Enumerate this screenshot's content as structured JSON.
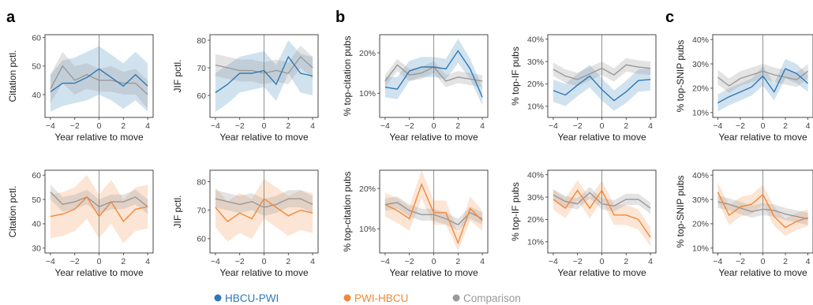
{
  "panel_labels": [
    "a",
    "b",
    "c"
  ],
  "colors": {
    "HBCU-PWI": "#2e79b5",
    "PWI-HBCU": "#f0883a",
    "Comparison": "#999999"
  },
  "legend": [
    {
      "label": "HBCU-PWI",
      "color": "#2e79b5"
    },
    {
      "label": "PWI-HBCU",
      "color": "#f0883a"
    },
    {
      "label": "Comparison",
      "color": "#999999"
    }
  ],
  "chart_data": [
    {
      "type": "line",
      "panel": "a",
      "row": "top",
      "ylabel": "Citation pctl.",
      "xlabel": "Year relative to move",
      "x": [
        -4,
        -3,
        -2,
        -1,
        0,
        1,
        2,
        3,
        4
      ],
      "xticks": [
        -4,
        -2,
        0,
        2,
        4
      ],
      "ylim": [
        32,
        61
      ],
      "yticks": [
        40,
        50,
        60
      ],
      "ytick_labels": [
        "40",
        "50",
        "60"
      ],
      "series": [
        {
          "name": "HBCU-PWI",
          "color": "#2e79b5",
          "values": [
            41,
            44,
            44,
            46,
            49,
            46,
            43,
            47,
            43
          ],
          "lower": [
            34,
            36,
            37,
            38,
            40,
            38,
            35,
            38,
            34
          ],
          "upper": [
            47,
            52,
            53,
            55,
            57,
            54,
            51,
            55,
            51
          ]
        },
        {
          "name": "Comparison",
          "color": "#999999",
          "values": [
            42,
            50,
            45,
            47,
            45,
            45,
            44,
            44,
            40
          ],
          "lower": [
            37,
            44,
            40,
            42,
            41,
            41,
            40,
            40,
            35
          ],
          "upper": [
            47,
            55,
            50,
            51,
            49,
            50,
            48,
            49,
            45
          ]
        }
      ]
    },
    {
      "type": "line",
      "panel": "a",
      "row": "top",
      "ylabel": "JIF pctl.",
      "xlabel": "Year relative to move",
      "x": [
        -4,
        -3,
        -2,
        -1,
        0,
        1,
        2,
        3,
        4
      ],
      "xticks": [
        -4,
        -2,
        0,
        2,
        4
      ],
      "ylim": [
        52,
        82
      ],
      "yticks": [
        60,
        70,
        80
      ],
      "ytick_labels": [
        "60",
        "70",
        "80"
      ],
      "series": [
        {
          "name": "HBCU-PWI",
          "color": "#2e79b5",
          "values": [
            61,
            64,
            68,
            68,
            69,
            64,
            74,
            68,
            67
          ],
          "lower": [
            54,
            57,
            61,
            62,
            63,
            58,
            68,
            61,
            60
          ],
          "upper": [
            68,
            71,
            74,
            75,
            76,
            71,
            80,
            75,
            74
          ]
        },
        {
          "name": "Comparison",
          "color": "#999999",
          "values": [
            71,
            70,
            69,
            69,
            68,
            69,
            68,
            74,
            70
          ],
          "lower": [
            67,
            66,
            65,
            65,
            64,
            65,
            64,
            70,
            66
          ],
          "upper": [
            75,
            74,
            73,
            73,
            72,
            73,
            72,
            78,
            74
          ]
        }
      ]
    },
    {
      "type": "line",
      "panel": "b",
      "row": "top",
      "ylabel": "% top-citation pubs",
      "xlabel": "Year relative to move",
      "x": [
        -4,
        -3,
        -2,
        -1,
        0,
        1,
        2,
        3,
        4
      ],
      "xticks": [
        -4,
        -2,
        0,
        2,
        4
      ],
      "ylim": [
        0.04,
        0.245
      ],
      "yticks": [
        0.1,
        0.2
      ],
      "ytick_labels": [
        "10%",
        "20%"
      ],
      "series": [
        {
          "name": "HBCU-PWI",
          "color": "#2e79b5",
          "values": [
            0.115,
            0.11,
            0.155,
            0.165,
            0.165,
            0.16,
            0.205,
            0.16,
            0.09
          ],
          "lower": [
            0.09,
            0.085,
            0.13,
            0.14,
            0.14,
            0.135,
            0.175,
            0.135,
            0.07
          ],
          "upper": [
            0.14,
            0.14,
            0.18,
            0.19,
            0.19,
            0.185,
            0.235,
            0.185,
            0.115
          ]
        },
        {
          "name": "Comparison",
          "color": "#999999",
          "values": [
            0.13,
            0.17,
            0.145,
            0.15,
            0.165,
            0.13,
            0.14,
            0.135,
            0.13
          ],
          "lower": [
            0.115,
            0.155,
            0.13,
            0.135,
            0.15,
            0.115,
            0.125,
            0.12,
            0.115
          ],
          "upper": [
            0.145,
            0.185,
            0.16,
            0.165,
            0.18,
            0.145,
            0.155,
            0.15,
            0.145
          ]
        }
      ]
    },
    {
      "type": "line",
      "panel": "b",
      "row": "top",
      "ylabel": "% top-IF pubs",
      "xlabel": "Year relative to move",
      "x": [
        -4,
        -3,
        -2,
        -1,
        0,
        1,
        2,
        3,
        4
      ],
      "xticks": [
        -4,
        -2,
        0,
        2,
        4
      ],
      "ylim": [
        0.05,
        0.42
      ],
      "yticks": [
        0.1,
        0.2,
        0.3,
        0.4
      ],
      "ytick_labels": [
        "10%",
        "20%",
        "30%",
        "40%"
      ],
      "series": [
        {
          "name": "HBCU-PWI",
          "color": "#2e79b5",
          "values": [
            0.17,
            0.15,
            0.195,
            0.235,
            0.175,
            0.125,
            0.165,
            0.215,
            0.22
          ],
          "lower": [
            0.12,
            0.1,
            0.145,
            0.185,
            0.125,
            0.08,
            0.115,
            0.165,
            0.17
          ],
          "upper": [
            0.22,
            0.2,
            0.245,
            0.285,
            0.225,
            0.17,
            0.215,
            0.265,
            0.27
          ]
        },
        {
          "name": "Comparison",
          "color": "#999999",
          "values": [
            0.265,
            0.235,
            0.22,
            0.245,
            0.27,
            0.24,
            0.285,
            0.275,
            0.27
          ],
          "lower": [
            0.235,
            0.205,
            0.19,
            0.215,
            0.24,
            0.21,
            0.255,
            0.245,
            0.24
          ],
          "upper": [
            0.295,
            0.265,
            0.25,
            0.275,
            0.3,
            0.27,
            0.315,
            0.305,
            0.3
          ]
        }
      ]
    },
    {
      "type": "line",
      "panel": "c",
      "row": "top",
      "ylabel": "% top-SNIP pubs",
      "xlabel": "Year relative to move",
      "x": [
        -4,
        -3,
        -2,
        -1,
        0,
        1,
        2,
        3,
        4
      ],
      "xticks": [
        -4,
        -2,
        0,
        2,
        4
      ],
      "ylim": [
        0.08,
        0.42
      ],
      "yticks": [
        0.1,
        0.2,
        0.3,
        0.4
      ],
      "ytick_labels": [
        "10%",
        "20%",
        "30%",
        "40%"
      ],
      "series": [
        {
          "name": "HBCU-PWI",
          "color": "#2e79b5",
          "values": [
            0.14,
            0.165,
            0.185,
            0.205,
            0.25,
            0.185,
            0.28,
            0.26,
            0.22
          ],
          "lower": [
            0.105,
            0.13,
            0.15,
            0.17,
            0.21,
            0.15,
            0.24,
            0.22,
            0.185
          ],
          "upper": [
            0.175,
            0.2,
            0.22,
            0.24,
            0.29,
            0.22,
            0.32,
            0.3,
            0.255
          ]
        },
        {
          "name": "Comparison",
          "color": "#999999",
          "values": [
            0.245,
            0.21,
            0.24,
            0.255,
            0.27,
            0.255,
            0.245,
            0.235,
            0.27
          ],
          "lower": [
            0.215,
            0.18,
            0.21,
            0.225,
            0.24,
            0.225,
            0.215,
            0.205,
            0.24
          ],
          "upper": [
            0.275,
            0.24,
            0.27,
            0.285,
            0.3,
            0.285,
            0.275,
            0.265,
            0.3
          ]
        }
      ]
    },
    {
      "type": "line",
      "panel": "a",
      "row": "bottom",
      "ylabel": "Citation pctl.",
      "xlabel": "Year relative to move",
      "x": [
        -4,
        -3,
        -2,
        -1,
        0,
        1,
        2,
        3,
        4
      ],
      "xticks": [
        -4,
        -2,
        0,
        2,
        4
      ],
      "ylim": [
        28,
        62
      ],
      "yticks": [
        30,
        40,
        50,
        60
      ],
      "ytick_labels": [
        "30",
        "40",
        "50",
        "60"
      ],
      "series": [
        {
          "name": "PWI-HBCU",
          "color": "#f0883a",
          "values": [
            43,
            44,
            46,
            51,
            43,
            49,
            41,
            46,
            47
          ],
          "lower": [
            34,
            35,
            37,
            42,
            34,
            40,
            32,
            37,
            38
          ],
          "upper": [
            52,
            53,
            55,
            60,
            52,
            58,
            50,
            55,
            56
          ]
        },
        {
          "name": "Comparison",
          "color": "#999999",
          "values": [
            53,
            48,
            49,
            51,
            47,
            49,
            49,
            51,
            47
          ],
          "lower": [
            50,
            45,
            46,
            48,
            44,
            46,
            46,
            48,
            44
          ],
          "upper": [
            56,
            51,
            52,
            54,
            50,
            52,
            52,
            54,
            50
          ]
        }
      ]
    },
    {
      "type": "line",
      "panel": "a",
      "row": "bottom",
      "ylabel": "JIF pctl.",
      "xlabel": "Year relative to move",
      "x": [
        -4,
        -3,
        -2,
        -1,
        0,
        1,
        2,
        3,
        4
      ],
      "xticks": [
        -4,
        -2,
        0,
        2,
        4
      ],
      "ylim": [
        55,
        84
      ],
      "yticks": [
        60,
        70,
        80
      ],
      "ytick_labels": [
        "60",
        "70",
        "80"
      ],
      "series": [
        {
          "name": "PWI-HBCU",
          "color": "#f0883a",
          "values": [
            71,
            66,
            69,
            67,
            74,
            71,
            68,
            70,
            69
          ],
          "lower": [
            64,
            59,
            62,
            60,
            67,
            64,
            61,
            63,
            62
          ],
          "upper": [
            78,
            73,
            76,
            74,
            81,
            78,
            75,
            77,
            76
          ]
        },
        {
          "name": "Comparison",
          "color": "#999999",
          "values": [
            74,
            73,
            72,
            73,
            71,
            72,
            74,
            74,
            72
          ],
          "lower": [
            71,
            70,
            69,
            70,
            68,
            69,
            71,
            71,
            69
          ],
          "upper": [
            77,
            76,
            75,
            76,
            74,
            75,
            77,
            77,
            75
          ]
        }
      ]
    },
    {
      "type": "line",
      "panel": "b",
      "row": "bottom",
      "ylabel": "% top-citation pubs",
      "xlabel": "Year relative to move",
      "x": [
        -4,
        -3,
        -2,
        -1,
        0,
        1,
        2,
        3,
        4
      ],
      "xticks": [
        -4,
        -2,
        0,
        2,
        4
      ],
      "ylim": [
        0.04,
        0.245
      ],
      "yticks": [
        0.1,
        0.2
      ],
      "ytick_labels": [
        "10%",
        "20%"
      ],
      "series": [
        {
          "name": "PWI-HBCU",
          "color": "#f0883a",
          "values": [
            0.16,
            0.145,
            0.125,
            0.21,
            0.14,
            0.14,
            0.065,
            0.15,
            0.12
          ],
          "lower": [
            0.13,
            0.115,
            0.095,
            0.175,
            0.11,
            0.11,
            0.045,
            0.12,
            0.095
          ],
          "upper": [
            0.19,
            0.175,
            0.155,
            0.245,
            0.17,
            0.17,
            0.09,
            0.18,
            0.145
          ]
        },
        {
          "name": "Comparison",
          "color": "#999999",
          "values": [
            0.16,
            0.165,
            0.145,
            0.135,
            0.135,
            0.125,
            0.11,
            0.14,
            0.125
          ],
          "lower": [
            0.145,
            0.15,
            0.13,
            0.12,
            0.12,
            0.11,
            0.095,
            0.125,
            0.11
          ],
          "upper": [
            0.175,
            0.18,
            0.16,
            0.15,
            0.15,
            0.14,
            0.125,
            0.155,
            0.14
          ]
        }
      ]
    },
    {
      "type": "line",
      "panel": "b",
      "row": "bottom",
      "ylabel": "% top-IF pubs",
      "xlabel": "Year relative to move",
      "x": [
        -4,
        -3,
        -2,
        -1,
        0,
        1,
        2,
        3,
        4
      ],
      "xticks": [
        -4,
        -2,
        0,
        2,
        4
      ],
      "ylim": [
        0.05,
        0.42
      ],
      "yticks": [
        0.1,
        0.2,
        0.3,
        0.4
      ],
      "ytick_labels": [
        "10%",
        "20%",
        "30%",
        "40%"
      ],
      "series": [
        {
          "name": "PWI-HBCU",
          "color": "#f0883a",
          "values": [
            0.29,
            0.25,
            0.33,
            0.25,
            0.33,
            0.22,
            0.22,
            0.2,
            0.12
          ],
          "lower": [
            0.245,
            0.205,
            0.285,
            0.205,
            0.285,
            0.175,
            0.175,
            0.155,
            0.08
          ],
          "upper": [
            0.335,
            0.295,
            0.375,
            0.295,
            0.375,
            0.265,
            0.265,
            0.245,
            0.165
          ]
        },
        {
          "name": "Comparison",
          "color": "#999999",
          "values": [
            0.31,
            0.28,
            0.27,
            0.32,
            0.27,
            0.26,
            0.29,
            0.29,
            0.25
          ],
          "lower": [
            0.285,
            0.255,
            0.245,
            0.295,
            0.245,
            0.235,
            0.265,
            0.265,
            0.225
          ],
          "upper": [
            0.335,
            0.305,
            0.295,
            0.345,
            0.295,
            0.285,
            0.315,
            0.315,
            0.275
          ]
        }
      ]
    },
    {
      "type": "line",
      "panel": "c",
      "row": "bottom",
      "ylabel": "% top-SNIP pubs",
      "xlabel": "Year relative to move",
      "x": [
        -4,
        -3,
        -2,
        -1,
        0,
        1,
        2,
        3,
        4
      ],
      "xticks": [
        -4,
        -2,
        0,
        2,
        4
      ],
      "ylim": [
        0.08,
        0.42
      ],
      "yticks": [
        0.1,
        0.2,
        0.3,
        0.4
      ],
      "ytick_labels": [
        "10%",
        "20%",
        "30%",
        "40%"
      ],
      "series": [
        {
          "name": "PWI-HBCU",
          "color": "#f0883a",
          "values": [
            0.33,
            0.235,
            0.27,
            0.28,
            0.32,
            0.23,
            0.185,
            0.21,
            0.225
          ],
          "lower": [
            0.29,
            0.195,
            0.23,
            0.24,
            0.28,
            0.19,
            0.15,
            0.175,
            0.19
          ],
          "upper": [
            0.37,
            0.275,
            0.31,
            0.32,
            0.36,
            0.27,
            0.22,
            0.245,
            0.26
          ]
        },
        {
          "name": "Comparison",
          "color": "#999999",
          "values": [
            0.29,
            0.28,
            0.265,
            0.25,
            0.26,
            0.255,
            0.24,
            0.23,
            0.22
          ],
          "lower": [
            0.265,
            0.255,
            0.24,
            0.225,
            0.235,
            0.23,
            0.215,
            0.205,
            0.195
          ],
          "upper": [
            0.315,
            0.305,
            0.29,
            0.275,
            0.285,
            0.28,
            0.265,
            0.255,
            0.245
          ]
        }
      ]
    }
  ]
}
